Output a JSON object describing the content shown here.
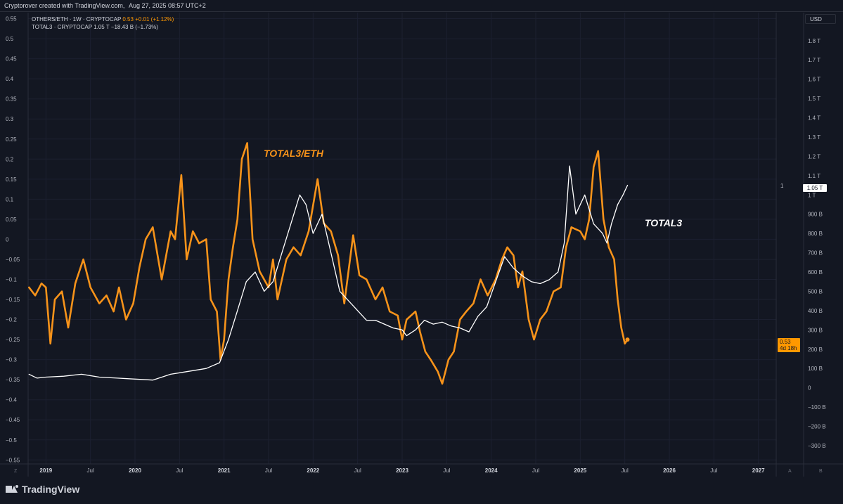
{
  "topbar": {
    "author": "Cryptorover created with TradingView.com,",
    "datetime": "Aug 27, 2025 08:57 UTC+2"
  },
  "legend": {
    "s1_name": "OTHERS/ETH · 1W · CRYPTOCAP",
    "s1_value": "0.53",
    "s1_change": "+0.01 (+1.12%)",
    "s2_name": "TOTAL3 · CRYPTOCAP",
    "s2_value": "1.05 T",
    "s2_change": "−18.43 B (−1.73%)"
  },
  "usd_label": "USD",
  "price_tags": {
    "total3": "1.05 T",
    "ratio_value": "0.53",
    "ratio_countdown": "4d 18h",
    "right_marker": "1"
  },
  "annotations": {
    "ratio_label": "TOTAL3/ETH",
    "total3_label": "TOTAL3"
  },
  "axis_corner": {
    "left": "Z",
    "right_a": "A",
    "right_b": "B"
  },
  "branding": {
    "logo_text": "TradingView"
  },
  "colors": {
    "background": "#131722",
    "ratio_line": "#f7931a",
    "total3_line": "#ffffff",
    "grid": "#1c2030"
  },
  "chart_data": {
    "type": "line",
    "left_axis": {
      "ticks": [
        "0.55",
        "0.5",
        "0.45",
        "0.4",
        "0.35",
        "0.3",
        "0.25",
        "0.2",
        "0.15",
        "0.1",
        "0.05",
        "0",
        "−0.05",
        "−0.1",
        "−0.15",
        "−0.2",
        "−0.25",
        "−0.3",
        "−0.35",
        "−0.4",
        "−0.45",
        "−0.5",
        "−0.55"
      ],
      "values": [
        0.55,
        0.5,
        0.45,
        0.4,
        0.35,
        0.3,
        0.25,
        0.2,
        0.15,
        0.1,
        0.05,
        0,
        -0.05,
        -0.1,
        -0.15,
        -0.2,
        -0.25,
        -0.3,
        -0.35,
        -0.4,
        -0.45,
        -0.5,
        -0.55
      ],
      "ylim": [
        -0.56,
        0.565
      ]
    },
    "right_axis": {
      "ticks": [
        "1.8 T",
        "1.7 T",
        "1.6 T",
        "1.5 T",
        "1.4 T",
        "1.3 T",
        "1.2 T",
        "1.1 T",
        "1 T",
        "900 B",
        "800 B",
        "700 B",
        "600 B",
        "500 B",
        "400 B",
        "300 B",
        "200 B",
        "100 B",
        "0",
        "−100 B",
        "−200 B",
        "−300 B"
      ],
      "values": [
        1800,
        1700,
        1600,
        1500,
        1400,
        1300,
        1200,
        1100,
        1000,
        900,
        800,
        700,
        600,
        500,
        400,
        300,
        200,
        100,
        0,
        -100,
        -200,
        -300
      ],
      "unit": "B",
      "ylim": [
        -395,
        1945
      ]
    },
    "x_axis": {
      "labels": [
        "2019",
        "Jul",
        "2020",
        "Jul",
        "2021",
        "Jul",
        "2022",
        "Jul",
        "2023",
        "Jul",
        "2024",
        "Jul",
        "2025",
        "Jul",
        "2026",
        "Jul",
        "2027"
      ],
      "label_t": [
        2019.0,
        2019.5,
        2020.0,
        2020.5,
        2021.0,
        2021.5,
        2022.0,
        2022.5,
        2023.0,
        2023.5,
        2024.0,
        2024.5,
        2025.0,
        2025.5,
        2026.0,
        2026.5,
        2027.0
      ],
      "bold": [
        true,
        false,
        true,
        false,
        true,
        false,
        true,
        false,
        true,
        false,
        true,
        false,
        true,
        false,
        true,
        false,
        true
      ],
      "xlim": [
        2018.8,
        2027.2
      ]
    },
    "series": [
      {
        "name": "OTHERS/ETH",
        "axis": "left",
        "color": "#f7931a",
        "points": [
          [
            2018.81,
            -0.12
          ],
          [
            2018.88,
            -0.14
          ],
          [
            2018.95,
            -0.11
          ],
          [
            2019.0,
            -0.12
          ],
          [
            2019.05,
            -0.26
          ],
          [
            2019.1,
            -0.15
          ],
          [
            2019.18,
            -0.13
          ],
          [
            2019.25,
            -0.22
          ],
          [
            2019.33,
            -0.11
          ],
          [
            2019.42,
            -0.05
          ],
          [
            2019.5,
            -0.12
          ],
          [
            2019.6,
            -0.16
          ],
          [
            2019.68,
            -0.14
          ],
          [
            2019.76,
            -0.18
          ],
          [
            2019.82,
            -0.12
          ],
          [
            2019.9,
            -0.2
          ],
          [
            2019.98,
            -0.16
          ],
          [
            2020.05,
            -0.07
          ],
          [
            2020.12,
            0.0
          ],
          [
            2020.2,
            0.03
          ],
          [
            2020.3,
            -0.1
          ],
          [
            2020.4,
            0.02
          ],
          [
            2020.45,
            0.0
          ],
          [
            2020.52,
            0.16
          ],
          [
            2020.58,
            -0.05
          ],
          [
            2020.65,
            0.02
          ],
          [
            2020.72,
            -0.01
          ],
          [
            2020.8,
            0.0
          ],
          [
            2020.85,
            -0.15
          ],
          [
            2020.92,
            -0.18
          ],
          [
            2020.96,
            -0.3
          ],
          [
            2021.0,
            -0.25
          ],
          [
            2021.05,
            -0.1
          ],
          [
            2021.1,
            -0.02
          ],
          [
            2021.15,
            0.05
          ],
          [
            2021.2,
            0.2
          ],
          [
            2021.26,
            0.24
          ],
          [
            2021.32,
            0.0
          ],
          [
            2021.4,
            -0.08
          ],
          [
            2021.5,
            -0.12
          ],
          [
            2021.55,
            -0.05
          ],
          [
            2021.6,
            -0.15
          ],
          [
            2021.7,
            -0.05
          ],
          [
            2021.78,
            -0.02
          ],
          [
            2021.86,
            -0.04
          ],
          [
            2021.95,
            0.02
          ],
          [
            2022.05,
            0.15
          ],
          [
            2022.12,
            0.04
          ],
          [
            2022.2,
            0.02
          ],
          [
            2022.28,
            -0.04
          ],
          [
            2022.35,
            -0.16
          ],
          [
            2022.45,
            0.01
          ],
          [
            2022.52,
            -0.09
          ],
          [
            2022.6,
            -0.1
          ],
          [
            2022.7,
            -0.15
          ],
          [
            2022.78,
            -0.12
          ],
          [
            2022.86,
            -0.18
          ],
          [
            2022.95,
            -0.19
          ],
          [
            2023.0,
            -0.25
          ],
          [
            2023.05,
            -0.2
          ],
          [
            2023.15,
            -0.18
          ],
          [
            2023.2,
            -0.23
          ],
          [
            2023.26,
            -0.28
          ],
          [
            2023.32,
            -0.3
          ],
          [
            2023.4,
            -0.33
          ],
          [
            2023.45,
            -0.36
          ],
          [
            2023.52,
            -0.3
          ],
          [
            2023.58,
            -0.28
          ],
          [
            2023.65,
            -0.2
          ],
          [
            2023.72,
            -0.18
          ],
          [
            2023.8,
            -0.16
          ],
          [
            2023.88,
            -0.1
          ],
          [
            2023.96,
            -0.14
          ],
          [
            2024.05,
            -0.1
          ],
          [
            2024.12,
            -0.05
          ],
          [
            2024.18,
            -0.02
          ],
          [
            2024.25,
            -0.04
          ],
          [
            2024.3,
            -0.12
          ],
          [
            2024.35,
            -0.08
          ],
          [
            2024.42,
            -0.2
          ],
          [
            2024.48,
            -0.25
          ],
          [
            2024.55,
            -0.2
          ],
          [
            2024.62,
            -0.18
          ],
          [
            2024.7,
            -0.13
          ],
          [
            2024.78,
            -0.12
          ],
          [
            2024.84,
            -0.02
          ],
          [
            2024.9,
            0.03
          ],
          [
            2025.0,
            0.02
          ],
          [
            2025.05,
            0.0
          ],
          [
            2025.1,
            0.05
          ],
          [
            2025.15,
            0.18
          ],
          [
            2025.2,
            0.22
          ],
          [
            2025.26,
            0.05
          ],
          [
            2025.32,
            -0.02
          ],
          [
            2025.38,
            -0.05
          ],
          [
            2025.42,
            -0.15
          ],
          [
            2025.46,
            -0.22
          ],
          [
            2025.5,
            -0.26
          ],
          [
            2025.53,
            -0.25
          ]
        ]
      },
      {
        "name": "TOTAL3",
        "axis": "right",
        "color": "#ffffff",
        "points": [
          [
            2018.81,
            70
          ],
          [
            2018.9,
            50
          ],
          [
            2019.0,
            55
          ],
          [
            2019.2,
            60
          ],
          [
            2019.4,
            70
          ],
          [
            2019.6,
            55
          ],
          [
            2019.8,
            50
          ],
          [
            2020.0,
            45
          ],
          [
            2020.2,
            40
          ],
          [
            2020.4,
            70
          ],
          [
            2020.6,
            85
          ],
          [
            2020.8,
            100
          ],
          [
            2020.95,
            130
          ],
          [
            2021.05,
            250
          ],
          [
            2021.15,
            400
          ],
          [
            2021.25,
            550
          ],
          [
            2021.35,
            600
          ],
          [
            2021.45,
            500
          ],
          [
            2021.55,
            550
          ],
          [
            2021.65,
            700
          ],
          [
            2021.75,
            850
          ],
          [
            2021.85,
            1000
          ],
          [
            2021.92,
            950
          ],
          [
            2022.0,
            800
          ],
          [
            2022.1,
            900
          ],
          [
            2022.2,
            700
          ],
          [
            2022.3,
            500
          ],
          [
            2022.4,
            450
          ],
          [
            2022.5,
            400
          ],
          [
            2022.6,
            350
          ],
          [
            2022.7,
            350
          ],
          [
            2022.8,
            330
          ],
          [
            2022.9,
            310
          ],
          [
            2023.0,
            300
          ],
          [
            2023.05,
            270
          ],
          [
            2023.15,
            300
          ],
          [
            2023.25,
            350
          ],
          [
            2023.35,
            330
          ],
          [
            2023.45,
            340
          ],
          [
            2023.55,
            320
          ],
          [
            2023.65,
            310
          ],
          [
            2023.75,
            290
          ],
          [
            2023.85,
            370
          ],
          [
            2023.95,
            420
          ],
          [
            2024.05,
            550
          ],
          [
            2024.15,
            680
          ],
          [
            2024.25,
            620
          ],
          [
            2024.35,
            580
          ],
          [
            2024.45,
            550
          ],
          [
            2024.55,
            540
          ],
          [
            2024.65,
            560
          ],
          [
            2024.75,
            600
          ],
          [
            2024.82,
            750
          ],
          [
            2024.88,
            1150
          ],
          [
            2024.95,
            900
          ],
          [
            2025.05,
            1000
          ],
          [
            2025.15,
            850
          ],
          [
            2025.25,
            800
          ],
          [
            2025.3,
            750
          ],
          [
            2025.35,
            850
          ],
          [
            2025.42,
            950
          ],
          [
            2025.48,
            1000
          ],
          [
            2025.53,
            1050
          ]
        ]
      }
    ]
  }
}
